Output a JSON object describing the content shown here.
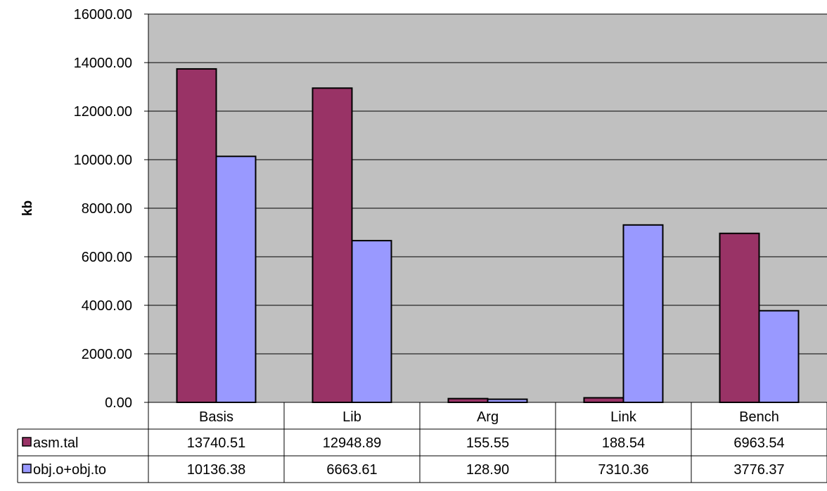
{
  "chart_data": {
    "type": "bar",
    "title": "",
    "xlabel": "",
    "ylabel": "kb",
    "ylim": [
      0,
      16000
    ],
    "y_tick_step": 2000,
    "y_tick_decimals": 2,
    "grid": true,
    "legend": "data-table",
    "categories": [
      "Basis",
      "Lib",
      "Arg",
      "Link",
      "Bench"
    ],
    "series": [
      {
        "name": "asm.tal",
        "color": "#993366",
        "values": [
          13740.51,
          12948.89,
          155.55,
          188.54,
          6963.54
        ],
        "display": [
          "13740.51",
          "12948.89",
          "155.55",
          "188.54",
          "6963.54"
        ]
      },
      {
        "name": "obj.o+obj.to",
        "color": "#9999ff",
        "values": [
          10136.38,
          6663.61,
          128.9,
          7310.36,
          3776.37
        ],
        "display": [
          "10136.38",
          "6663.61",
          "128.90",
          "7310.36",
          "3776.37"
        ]
      }
    ],
    "plot_background": "#c0c0c0"
  }
}
